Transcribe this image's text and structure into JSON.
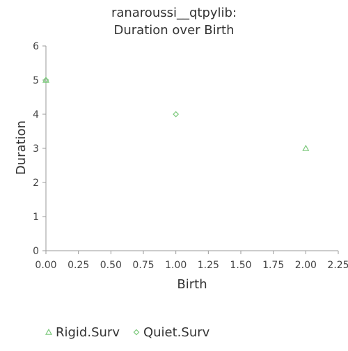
{
  "chart_data": {
    "type": "scatter",
    "title_lines": [
      "ranaroussi__qtpylib:",
      "Duration over Birth"
    ],
    "xlabel": "Birth",
    "ylabel": "Duration",
    "xlim": [
      0,
      2.25
    ],
    "ylim": [
      0,
      6
    ],
    "xticks": [
      "0.00",
      "0.25",
      "0.50",
      "0.75",
      "1.00",
      "1.25",
      "1.50",
      "1.75",
      "2.00",
      "2.25"
    ],
    "yticks": [
      "0",
      "1",
      "2",
      "3",
      "4",
      "5",
      "6"
    ],
    "grid": false,
    "legend_position": "bottom",
    "series": [
      {
        "name": "Rigid.Surv",
        "marker": "triangle",
        "color": "#7dc97d",
        "points": [
          {
            "x": 0,
            "y": 5
          },
          {
            "x": 2,
            "y": 3
          }
        ]
      },
      {
        "name": "Quiet.Surv",
        "marker": "diamond",
        "color": "#7dc97d",
        "points": [
          {
            "x": 0,
            "y": 5
          },
          {
            "x": 1,
            "y": 4
          }
        ]
      }
    ]
  }
}
